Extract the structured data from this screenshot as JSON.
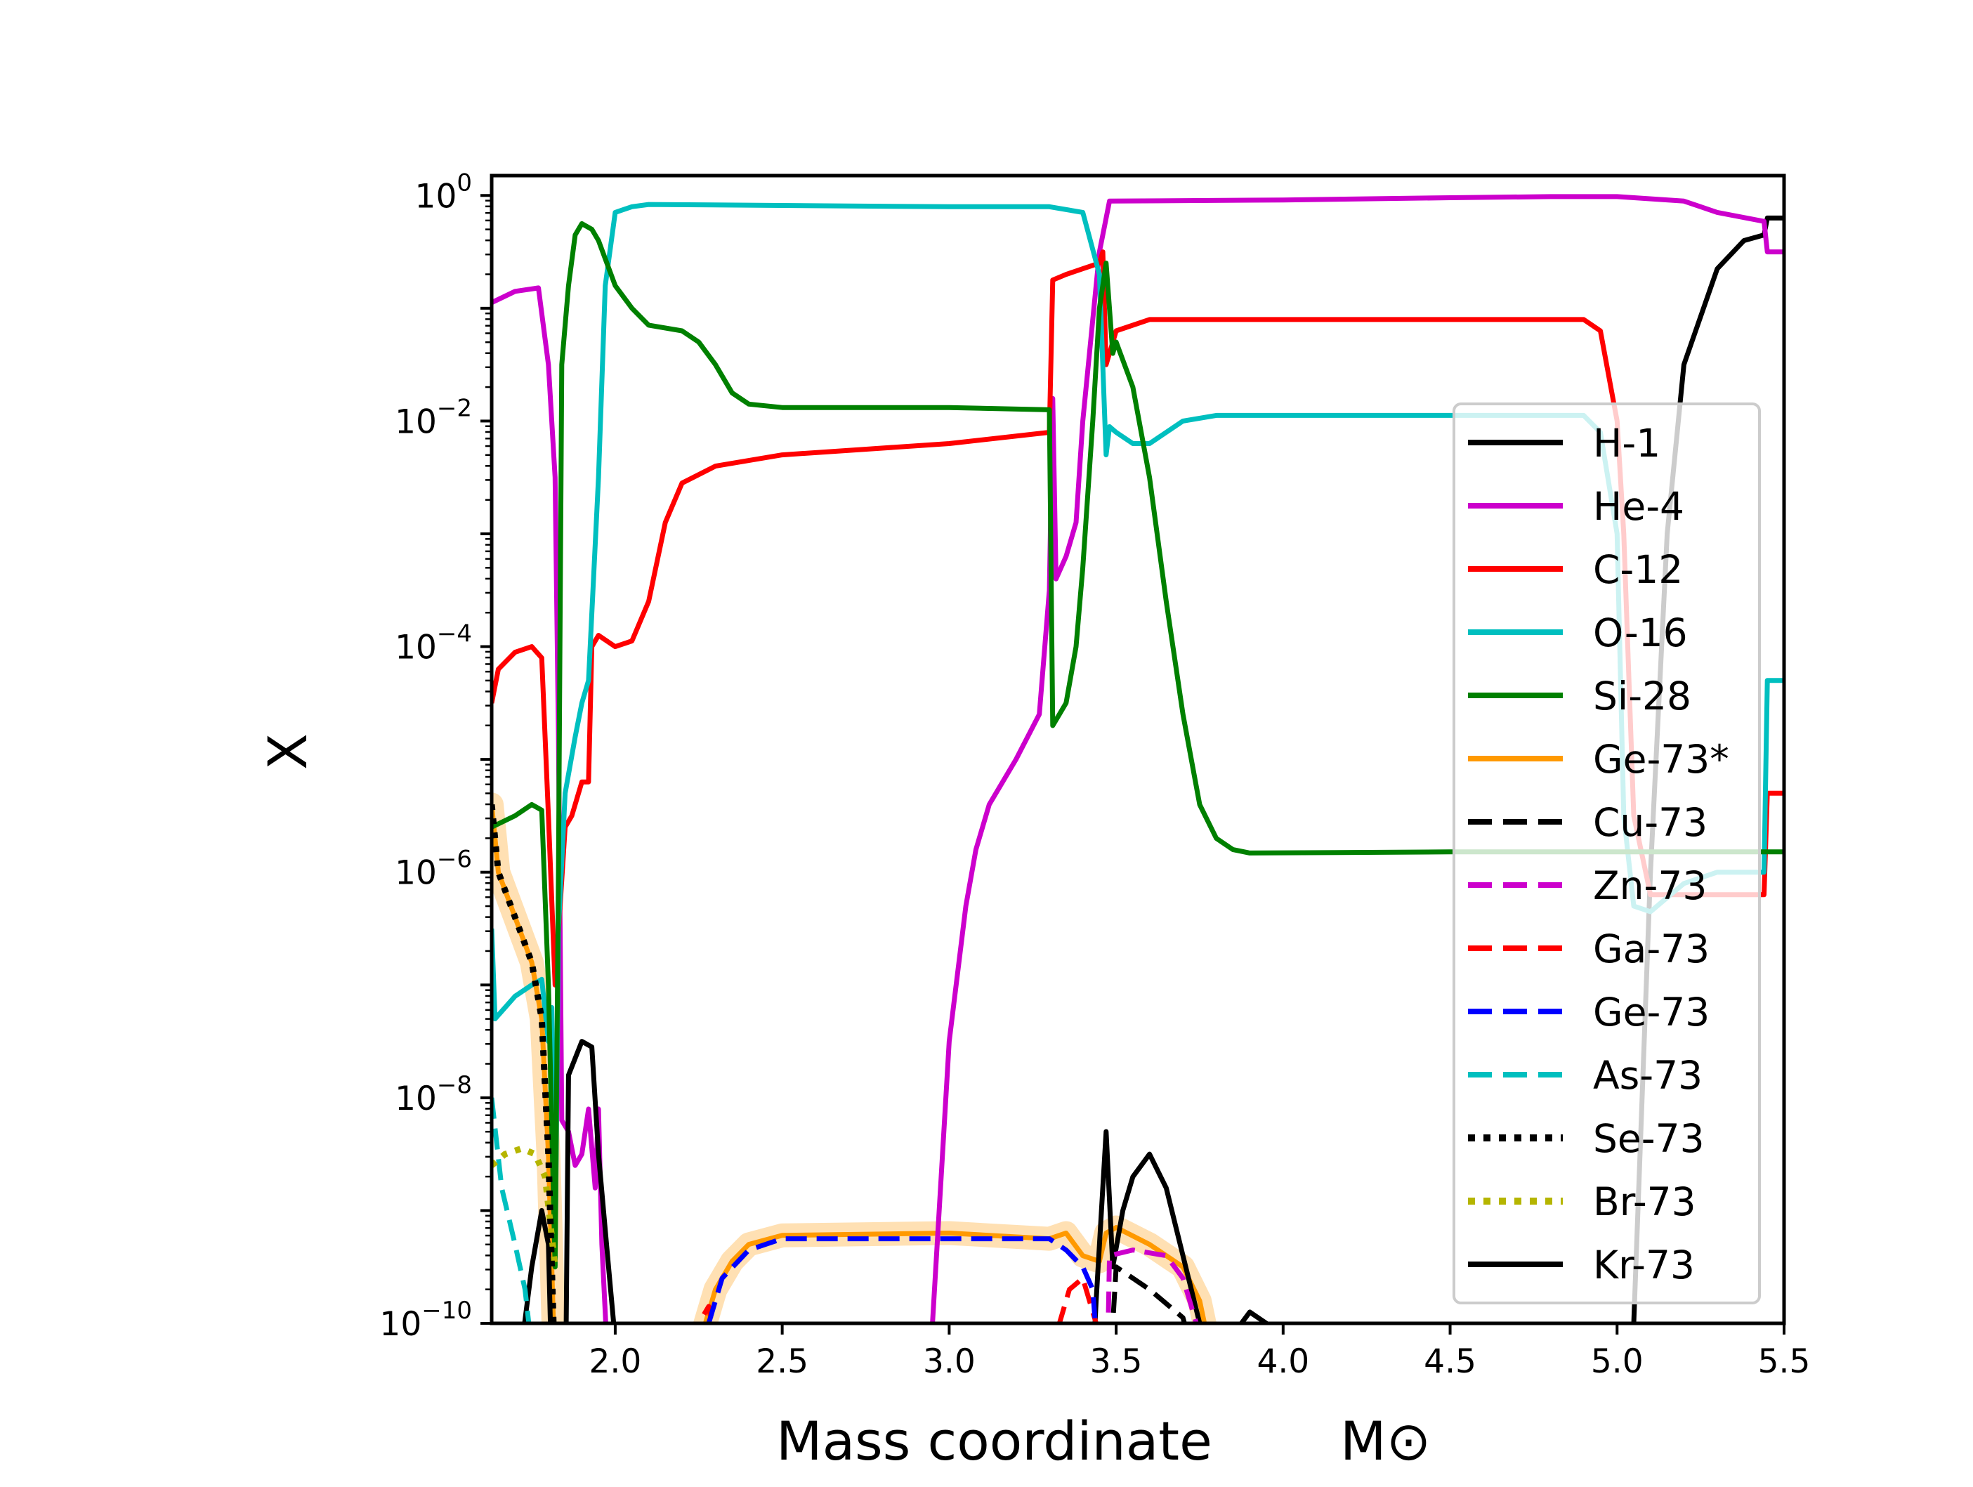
{
  "chart_data": {
    "type": "line",
    "xlabel": "Mass coordinate",
    "xlabel_symbol": "M⊙",
    "ylabel": "X",
    "yscale": "log",
    "xlim": [
      1.63,
      5.5
    ],
    "ylim": [
      1e-10,
      1.5
    ],
    "xticks": [
      2.0,
      2.5,
      3.0,
      3.5,
      4.0,
      4.5,
      5.0,
      5.5
    ],
    "xtick_labels": [
      "2.0",
      "2.5",
      "3.0",
      "3.5",
      "4.0",
      "4.5",
      "5.0",
      "5.5"
    ],
    "yticks": [
      {
        "base": "10",
        "exp": "−10",
        "value": -10
      },
      {
        "base": "10",
        "exp": "−8",
        "value": -8
      },
      {
        "base": "10",
        "exp": "−6",
        "value": -6
      },
      {
        "base": "10",
        "exp": "−4",
        "value": -4
      },
      {
        "base": "10",
        "exp": "−2",
        "value": -2
      },
      {
        "base": "10",
        "exp": "0",
        "value": 0
      }
    ],
    "legend_position": "right",
    "series": [
      {
        "name": "H-1",
        "color": "#000000",
        "style": "solid",
        "points": [
          [
            5.0,
            -11
          ],
          [
            5.05,
            -10
          ],
          [
            5.1,
            -6
          ],
          [
            5.15,
            -3
          ],
          [
            5.2,
            -1.5
          ],
          [
            5.3,
            -0.65
          ],
          [
            5.38,
            -0.4
          ],
          [
            5.44,
            -0.35
          ],
          [
            5.45,
            -0.2
          ],
          [
            5.5,
            -0.2
          ]
        ]
      },
      {
        "name": "He-4",
        "color": "#cc00cc",
        "style": "solid",
        "points": [
          [
            1.63,
            -0.95
          ],
          [
            1.7,
            -0.85
          ],
          [
            1.77,
            -0.82
          ],
          [
            1.8,
            -1.5
          ],
          [
            1.82,
            -2.5
          ],
          [
            1.83,
            -4.8
          ],
          [
            1.84,
            -8.2
          ],
          [
            1.86,
            -8.3
          ],
          [
            1.88,
            -8.6
          ],
          [
            1.9,
            -8.5
          ],
          [
            1.92,
            -8.1
          ],
          [
            1.94,
            -8.8
          ],
          [
            1.95,
            -8.1
          ],
          [
            1.96,
            -9.3
          ],
          [
            1.98,
            -10.5
          ],
          [
            2.9,
            -11
          ],
          [
            2.95,
            -10
          ],
          [
            3.0,
            -7.5
          ],
          [
            3.05,
            -6.3
          ],
          [
            3.08,
            -5.8
          ],
          [
            3.12,
            -5.4
          ],
          [
            3.2,
            -5.0
          ],
          [
            3.27,
            -4.6
          ],
          [
            3.3,
            -3.5
          ],
          [
            3.31,
            -1.8
          ],
          [
            3.32,
            -3.4
          ],
          [
            3.35,
            -3.2
          ],
          [
            3.38,
            -2.9
          ],
          [
            3.4,
            -2.0
          ],
          [
            3.45,
            -0.5
          ],
          [
            3.48,
            -0.05
          ],
          [
            4.0,
            -0.04
          ],
          [
            4.5,
            -0.02
          ],
          [
            4.8,
            -0.01
          ],
          [
            5.0,
            -0.01
          ],
          [
            5.2,
            -0.05
          ],
          [
            5.3,
            -0.15
          ],
          [
            5.44,
            -0.23
          ],
          [
            5.45,
            -0.5
          ],
          [
            5.5,
            -0.5
          ]
        ]
      },
      {
        "name": "C-12",
        "color": "#ff0000",
        "style": "solid",
        "points": [
          [
            1.63,
            -4.5
          ],
          [
            1.65,
            -4.2
          ],
          [
            1.7,
            -4.05
          ],
          [
            1.75,
            -4.0
          ],
          [
            1.78,
            -4.1
          ],
          [
            1.8,
            -5.5
          ],
          [
            1.82,
            -7
          ],
          [
            1.85,
            -5.6
          ],
          [
            1.87,
            -5.5
          ],
          [
            1.9,
            -5.2
          ],
          [
            1.92,
            -5.2
          ],
          [
            1.93,
            -4.0
          ],
          [
            1.95,
            -3.9
          ],
          [
            2.0,
            -4.0
          ],
          [
            2.05,
            -3.95
          ],
          [
            2.1,
            -3.6
          ],
          [
            2.15,
            -2.9
          ],
          [
            2.2,
            -2.55
          ],
          [
            2.3,
            -2.4
          ],
          [
            2.5,
            -2.3
          ],
          [
            3.0,
            -2.2
          ],
          [
            3.3,
            -2.1
          ],
          [
            3.31,
            -0.75
          ],
          [
            3.35,
            -0.7
          ],
          [
            3.4,
            -0.65
          ],
          [
            3.45,
            -0.6
          ],
          [
            3.46,
            -0.5
          ],
          [
            3.47,
            -1.5
          ],
          [
            3.5,
            -1.2
          ],
          [
            3.6,
            -1.1
          ],
          [
            3.8,
            -1.1
          ],
          [
            4.5,
            -1.1
          ],
          [
            4.9,
            -1.1
          ],
          [
            4.95,
            -1.2
          ],
          [
            5.0,
            -2.0
          ],
          [
            5.02,
            -3.0
          ],
          [
            5.05,
            -5.5
          ],
          [
            5.1,
            -6.2
          ],
          [
            5.3,
            -6.2
          ],
          [
            5.44,
            -6.2
          ],
          [
            5.45,
            -5.3
          ],
          [
            5.5,
            -5.3
          ]
        ]
      },
      {
        "name": "O-16",
        "color": "#00bfbf",
        "style": "solid",
        "points": [
          [
            1.63,
            -6.5
          ],
          [
            1.64,
            -7.3
          ],
          [
            1.7,
            -7.1
          ],
          [
            1.75,
            -7.0
          ],
          [
            1.78,
            -6.95
          ],
          [
            1.8,
            -7.5
          ],
          [
            1.81,
            -7.2
          ],
          [
            1.82,
            -9.5
          ],
          [
            1.83,
            -6.5
          ],
          [
            1.85,
            -5.3
          ],
          [
            1.88,
            -4.8
          ],
          [
            1.9,
            -4.5
          ],
          [
            1.92,
            -4.3
          ],
          [
            1.95,
            -2.5
          ],
          [
            1.97,
            -0.8
          ],
          [
            2.0,
            -0.15
          ],
          [
            2.05,
            -0.1
          ],
          [
            2.1,
            -0.08
          ],
          [
            3.0,
            -0.1
          ],
          [
            3.3,
            -0.1
          ],
          [
            3.4,
            -0.15
          ],
          [
            3.45,
            -0.7
          ],
          [
            3.47,
            -2.3
          ],
          [
            3.48,
            -2.05
          ],
          [
            3.5,
            -2.1
          ],
          [
            3.55,
            -2.2
          ],
          [
            3.6,
            -2.2
          ],
          [
            3.7,
            -2.0
          ],
          [
            3.8,
            -1.95
          ],
          [
            4.5,
            -1.95
          ],
          [
            4.9,
            -1.95
          ],
          [
            4.95,
            -2.1
          ],
          [
            5.0,
            -3
          ],
          [
            5.02,
            -5.5
          ],
          [
            5.05,
            -6.3
          ],
          [
            5.1,
            -6.35
          ],
          [
            5.2,
            -6.1
          ],
          [
            5.3,
            -6.0
          ],
          [
            5.44,
            -6.0
          ],
          [
            5.45,
            -4.3
          ],
          [
            5.5,
            -4.3
          ]
        ]
      },
      {
        "name": "Si-28",
        "color": "#008000",
        "style": "solid",
        "points": [
          [
            1.63,
            -5.6
          ],
          [
            1.7,
            -5.5
          ],
          [
            1.75,
            -5.4
          ],
          [
            1.78,
            -5.45
          ],
          [
            1.8,
            -7.0
          ],
          [
            1.82,
            -9.5
          ],
          [
            1.83,
            -6
          ],
          [
            1.84,
            -1.5
          ],
          [
            1.86,
            -0.8
          ],
          [
            1.88,
            -0.35
          ],
          [
            1.9,
            -0.25
          ],
          [
            1.93,
            -0.3
          ],
          [
            1.95,
            -0.4
          ],
          [
            2.0,
            -0.8
          ],
          [
            2.05,
            -1.0
          ],
          [
            2.1,
            -1.15
          ],
          [
            2.2,
            -1.2
          ],
          [
            2.25,
            -1.3
          ],
          [
            2.3,
            -1.5
          ],
          [
            2.35,
            -1.75
          ],
          [
            2.4,
            -1.85
          ],
          [
            2.5,
            -1.88
          ],
          [
            3.0,
            -1.88
          ],
          [
            3.3,
            -1.9
          ],
          [
            3.31,
            -4.7
          ],
          [
            3.35,
            -4.5
          ],
          [
            3.38,
            -4.0
          ],
          [
            3.4,
            -3.3
          ],
          [
            3.43,
            -2.0
          ],
          [
            3.45,
            -1.0
          ],
          [
            3.47,
            -0.6
          ],
          [
            3.49,
            -1.4
          ],
          [
            3.5,
            -1.3
          ],
          [
            3.55,
            -1.7
          ],
          [
            3.6,
            -2.5
          ],
          [
            3.65,
            -3.6
          ],
          [
            3.7,
            -4.6
          ],
          [
            3.75,
            -5.4
          ],
          [
            3.8,
            -5.7
          ],
          [
            3.85,
            -5.8
          ],
          [
            3.9,
            -5.83
          ],
          [
            4.5,
            -5.82
          ],
          [
            5.5,
            -5.82
          ]
        ]
      },
      {
        "name": "Ge-73*",
        "color": "#ff9900",
        "style": "solid",
        "points": [
          [
            1.63,
            -5.4
          ],
          [
            1.65,
            -6.0
          ],
          [
            1.7,
            -6.4
          ],
          [
            1.75,
            -6.8
          ],
          [
            1.78,
            -7.3
          ],
          [
            1.8,
            -8.5
          ],
          [
            1.82,
            -10.5
          ],
          [
            2.2,
            -11
          ],
          [
            2.25,
            -10.2
          ],
          [
            2.3,
            -9.7
          ],
          [
            2.35,
            -9.45
          ],
          [
            2.4,
            -9.3
          ],
          [
            2.5,
            -9.22
          ],
          [
            3.0,
            -9.2
          ],
          [
            3.3,
            -9.25
          ],
          [
            3.35,
            -9.2
          ],
          [
            3.4,
            -9.4
          ],
          [
            3.45,
            -9.45
          ],
          [
            3.47,
            -9.2
          ],
          [
            3.5,
            -9.15
          ],
          [
            3.6,
            -9.3
          ],
          [
            3.7,
            -9.5
          ],
          [
            3.75,
            -9.8
          ],
          [
            3.8,
            -10.5
          ]
        ]
      },
      {
        "name": "Cu-73",
        "color": "#000000",
        "style": "dashed",
        "points": [
          [
            3.47,
            -11
          ],
          [
            3.5,
            -9.5
          ],
          [
            3.6,
            -9.7
          ],
          [
            3.7,
            -9.95
          ],
          [
            3.75,
            -10.5
          ]
        ]
      },
      {
        "name": "Zn-73",
        "color": "#cc00cc",
        "style": "dashed",
        "points": [
          [
            3.47,
            -11
          ],
          [
            3.48,
            -9.4
          ],
          [
            3.55,
            -9.35
          ],
          [
            3.65,
            -9.4
          ],
          [
            3.7,
            -9.6
          ],
          [
            3.75,
            -10.1
          ],
          [
            3.78,
            -10.5
          ]
        ]
      },
      {
        "name": "Ga-73",
        "color": "#ff0000",
        "style": "dashed",
        "points": [
          [
            2.22,
            -11
          ],
          [
            2.25,
            -10
          ],
          [
            2.28,
            -9.85
          ],
          [
            2.3,
            -10.2
          ],
          [
            2.32,
            -10.5
          ],
          [
            3.3,
            -11
          ],
          [
            3.33,
            -10
          ],
          [
            3.36,
            -9.7
          ],
          [
            3.4,
            -9.6
          ],
          [
            3.44,
            -10
          ],
          [
            3.46,
            -10.5
          ]
        ]
      },
      {
        "name": "Ge-73",
        "color": "#0000ff",
        "style": "dashed",
        "points": [
          [
            1.63,
            -10.1
          ],
          [
            1.64,
            -10.5
          ],
          [
            2.25,
            -11
          ],
          [
            2.28,
            -10
          ],
          [
            2.32,
            -9.6
          ],
          [
            2.4,
            -9.35
          ],
          [
            2.5,
            -9.25
          ],
          [
            3.0,
            -9.25
          ],
          [
            3.3,
            -9.25
          ],
          [
            3.35,
            -9.35
          ],
          [
            3.4,
            -9.5
          ],
          [
            3.43,
            -9.7
          ],
          [
            3.45,
            -10.5
          ]
        ]
      },
      {
        "name": "As-73",
        "color": "#00bfbf",
        "style": "dashed",
        "points": [
          [
            1.63,
            -8.0
          ],
          [
            1.66,
            -8.8
          ],
          [
            1.7,
            -9.3
          ],
          [
            1.73,
            -9.7
          ],
          [
            1.76,
            -10.5
          ],
          [
            2.22,
            -11
          ],
          [
            2.25,
            -10.2
          ],
          [
            2.28,
            -10.3
          ],
          [
            2.3,
            -10.6
          ]
        ]
      },
      {
        "name": "Se-73",
        "color": "#000000",
        "style": "dotted",
        "points": [
          [
            1.63,
            -5.4
          ],
          [
            1.65,
            -6.0
          ],
          [
            1.7,
            -6.4
          ],
          [
            1.75,
            -6.8
          ],
          [
            1.78,
            -7.3
          ],
          [
            1.8,
            -8.5
          ],
          [
            1.82,
            -10.5
          ]
        ]
      },
      {
        "name": "Br-73",
        "color": "#b5b500",
        "style": "dotted",
        "points": [
          [
            1.63,
            -8.6
          ],
          [
            1.67,
            -8.5
          ],
          [
            1.72,
            -8.45
          ],
          [
            1.76,
            -8.5
          ],
          [
            1.79,
            -8.7
          ],
          [
            1.82,
            -9.5
          ]
        ]
      },
      {
        "name": "Kr-73",
        "color": "#000000",
        "style": "solid",
        "points": [
          [
            1.7,
            -11
          ],
          [
            1.72,
            -10.2
          ],
          [
            1.75,
            -9.5
          ],
          [
            1.78,
            -9.0
          ],
          [
            1.8,
            -9.3
          ],
          [
            1.81,
            -10.5
          ],
          [
            1.85,
            -11
          ],
          [
            1.86,
            -7.8
          ],
          [
            1.9,
            -7.5
          ],
          [
            1.93,
            -7.55
          ],
          [
            1.95,
            -8.5
          ],
          [
            1.98,
            -9.5
          ],
          [
            2.02,
            -10.8
          ],
          [
            3.42,
            -11
          ],
          [
            3.44,
            -9.8
          ],
          [
            3.47,
            -8.3
          ],
          [
            3.49,
            -9.5
          ],
          [
            3.52,
            -9.0
          ],
          [
            3.55,
            -8.7
          ],
          [
            3.6,
            -8.5
          ],
          [
            3.65,
            -8.8
          ],
          [
            3.7,
            -9.4
          ],
          [
            3.75,
            -10
          ],
          [
            3.8,
            -10.5
          ],
          [
            3.85,
            -10.1
          ],
          [
            3.9,
            -9.9
          ],
          [
            3.95,
            -10.0
          ],
          [
            3.98,
            -10.3
          ],
          [
            4.0,
            -10.6
          ]
        ]
      }
    ]
  }
}
